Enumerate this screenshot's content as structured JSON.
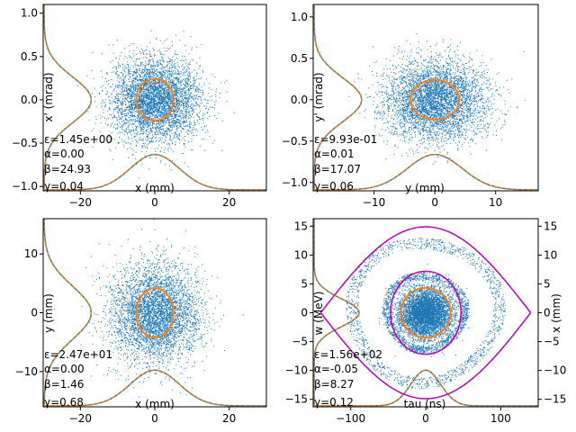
{
  "colors": {
    "scatter": "#1f77b4",
    "ellipse": "#ff7f0e",
    "profile_solid": "#4a7f94",
    "profile_dashed": "#ff7f0e",
    "separatrix": "#bf00bf"
  },
  "chart_data": [
    {
      "type": "scatter",
      "xlabel": "x (mm)",
      "ylabel": "x' (mrad)",
      "xlim": [
        -30,
        30
      ],
      "ylim": [
        -1.05,
        1.1
      ],
      "xticks": [
        -20,
        0,
        20
      ],
      "xtick_labels": [
        "−20",
        "0",
        "20"
      ],
      "yticks": [
        -1.0,
        -0.5,
        0.0,
        0.5,
        1.0
      ],
      "ytick_labels": [
        "−1.0",
        "−0.5",
        "0.0",
        "0.5",
        "1.0"
      ],
      "distribution": {
        "type": "gaussian",
        "center": [
          0,
          0
        ],
        "sigma": [
          6.0,
          0.24
        ],
        "n_points": 4500
      },
      "ellipse": {
        "center": [
          0,
          0
        ],
        "semi_axes": [
          5.0,
          0.24
        ]
      },
      "params": [
        "ε=1.45e+00",
        "α=0.00",
        "β=24.93",
        "γ=0.04"
      ]
    },
    {
      "type": "scatter",
      "xlabel": "y (mm)",
      "ylabel": "y' (mrad)",
      "xlim": [
        -20,
        17
      ],
      "ylim": [
        -1.1,
        1.15
      ],
      "xticks": [
        -10,
        0,
        10
      ],
      "xtick_labels": [
        "−10",
        "0",
        "10"
      ],
      "yticks": [
        -1.0,
        -0.5,
        0.0,
        0.5,
        1.0
      ],
      "ytick_labels": [
        "−1.0",
        "−0.5",
        "0.0",
        "0.5",
        "1.0"
      ],
      "distribution": {
        "type": "gaussian",
        "center": [
          0,
          0
        ],
        "sigma": [
          4.1,
          0.24
        ],
        "n_points": 4500
      },
      "ellipse": {
        "center": [
          0,
          0
        ],
        "semi_axes": [
          4.0,
          0.24
        ]
      },
      "params": [
        "ε=9.93e-01",
        "α=0.01",
        "β=17.07",
        "γ=0.06"
      ]
    },
    {
      "type": "scatter",
      "xlabel": "x (mm)",
      "ylabel": "y (mm)",
      "xlim": [
        -30,
        30
      ],
      "ylim": [
        -16,
        16
      ],
      "xticks": [
        -20,
        0,
        20
      ],
      "xtick_labels": [
        "−20",
        "0",
        "20"
      ],
      "yticks": [
        -10,
        0,
        10
      ],
      "ytick_labels": [
        "−10",
        "0",
        "10"
      ],
      "distribution": {
        "type": "gaussian",
        "center": [
          0,
          0
        ],
        "sigma": [
          6.0,
          4.1
        ],
        "n_points": 4500
      },
      "ellipse": {
        "center": [
          0,
          0
        ],
        "semi_axes": [
          5.0,
          4.2
        ]
      },
      "params": [
        "ε=2.47e+01",
        "α=0.00",
        "β=1.46",
        "γ=0.68"
      ]
    },
    {
      "type": "scatter",
      "xlabel": "tau (ns)",
      "ylabel": "w (MeV)",
      "y2label": "x (mm)",
      "xlim": [
        -150,
        150
      ],
      "ylim": [
        -16.3,
        16.3
      ],
      "xticks": [
        -100,
        0,
        100
      ],
      "xtick_labels": [
        "−100",
        "0",
        "100"
      ],
      "yticks": [
        -15,
        -10,
        -5,
        0,
        5,
        10,
        15
      ],
      "ytick_labels": [
        "−15",
        "−10",
        "−5",
        "0",
        "5",
        "10",
        "15"
      ],
      "distribution": {
        "type": "gaussian-core-with-spiral-arms",
        "center": [
          0,
          0
        ],
        "sigma": [
          18,
          2.2
        ],
        "n_points": 5000
      },
      "ellipse": {
        "center": [
          0,
          0
        ],
        "semi_axes": [
          33,
          4.3
        ]
      },
      "separatrix": {
        "tau_range": [
          -140,
          140
        ],
        "w_max": 14.9
      },
      "inner_orbit": {
        "semi_axes": [
          47,
          7.2
        ]
      },
      "params": [
        "ε=1.56e+02",
        "α=-0.05",
        "β=8.27",
        "γ=0.12"
      ]
    }
  ]
}
